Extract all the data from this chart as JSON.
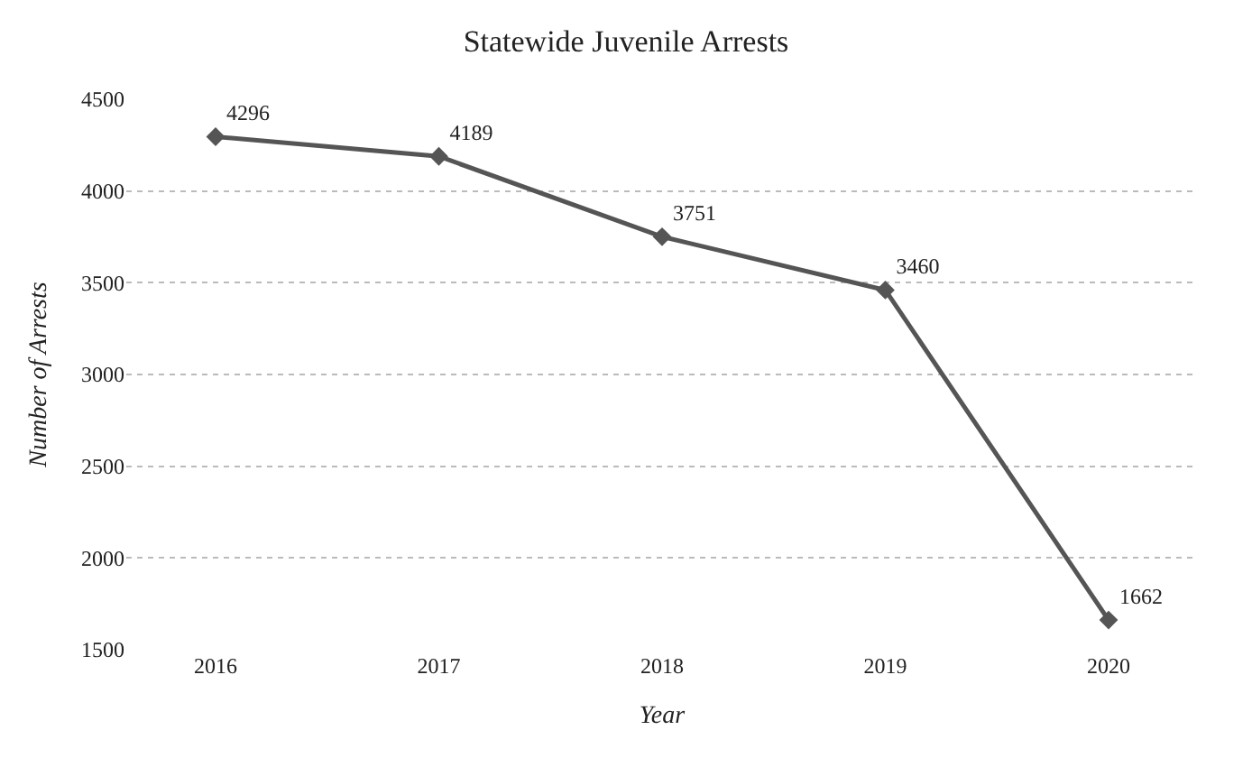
{
  "chart_data": {
    "type": "line",
    "title": "Statewide Juvenile Arrests",
    "xlabel": "Year",
    "ylabel": "Number of Arrests",
    "categories": [
      "2016",
      "2017",
      "2018",
      "2019",
      "2020"
    ],
    "series": [
      {
        "color": "#555555",
        "values": [
          4296,
          4189,
          3751,
          3460,
          1662
        ]
      }
    ],
    "ylim": [
      1500,
      4500
    ],
    "yticks": [
      1500,
      2000,
      2500,
      3000,
      3500,
      4000,
      4500
    ],
    "grid": "y",
    "marker": "diamond",
    "line_style": "solid",
    "data_labels": true,
    "legend": false
  }
}
